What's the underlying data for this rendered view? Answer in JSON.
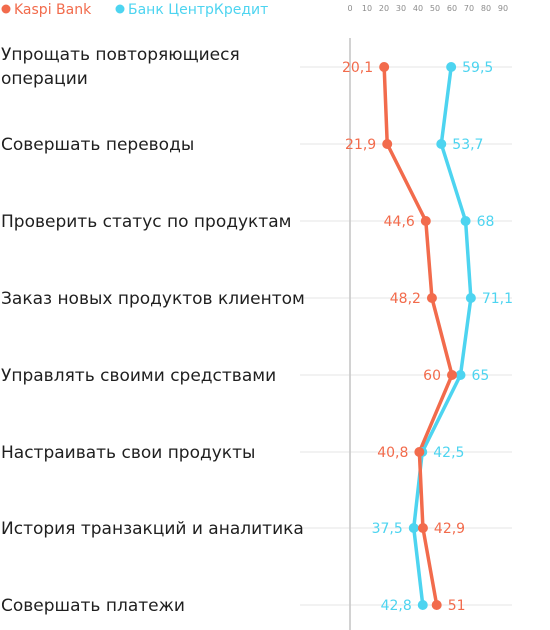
{
  "chart_data": {
    "type": "line",
    "orientation": "horizontal",
    "categories": [
      [
        "Упрощать повторяющиеся",
        "операции"
      ],
      [
        "Совершать переводы"
      ],
      [
        "Проверить статус по продуктам"
      ],
      [
        "Заказ новых продуктов клиентом"
      ],
      [
        "Управлять своими средствами"
      ],
      [
        "Настраивать свои продукты"
      ],
      [
        "История транзакций и аналитика"
      ],
      [
        "Совершать платежи"
      ]
    ],
    "series": [
      {
        "name": "Kaspi Bank",
        "color": "#f26b4c",
        "values": [
          20.1,
          21.9,
          44.6,
          48.2,
          60,
          40.8,
          42.9,
          51
        ],
        "labels": [
          "20,1",
          "21,9",
          "44,6",
          "48,2",
          "60",
          "40,8",
          "42,9",
          "51"
        ]
      },
      {
        "name": "Банк ЦентрКредит",
        "color": "#4dd4f0",
        "values": [
          59.5,
          53.7,
          68,
          71.1,
          65,
          42.5,
          37.5,
          42.8
        ],
        "labels": [
          "59,5",
          "53,7",
          "68",
          "71,1",
          "65",
          "42,5",
          "37,5",
          "42,8"
        ]
      }
    ],
    "xticks": [
      0,
      10,
      20,
      30,
      40,
      50,
      60,
      70,
      80,
      90
    ],
    "xlim": [
      0,
      90
    ],
    "title": "",
    "xlabel": "",
    "ylabel": "",
    "grid": true,
    "legend": "top-left"
  }
}
